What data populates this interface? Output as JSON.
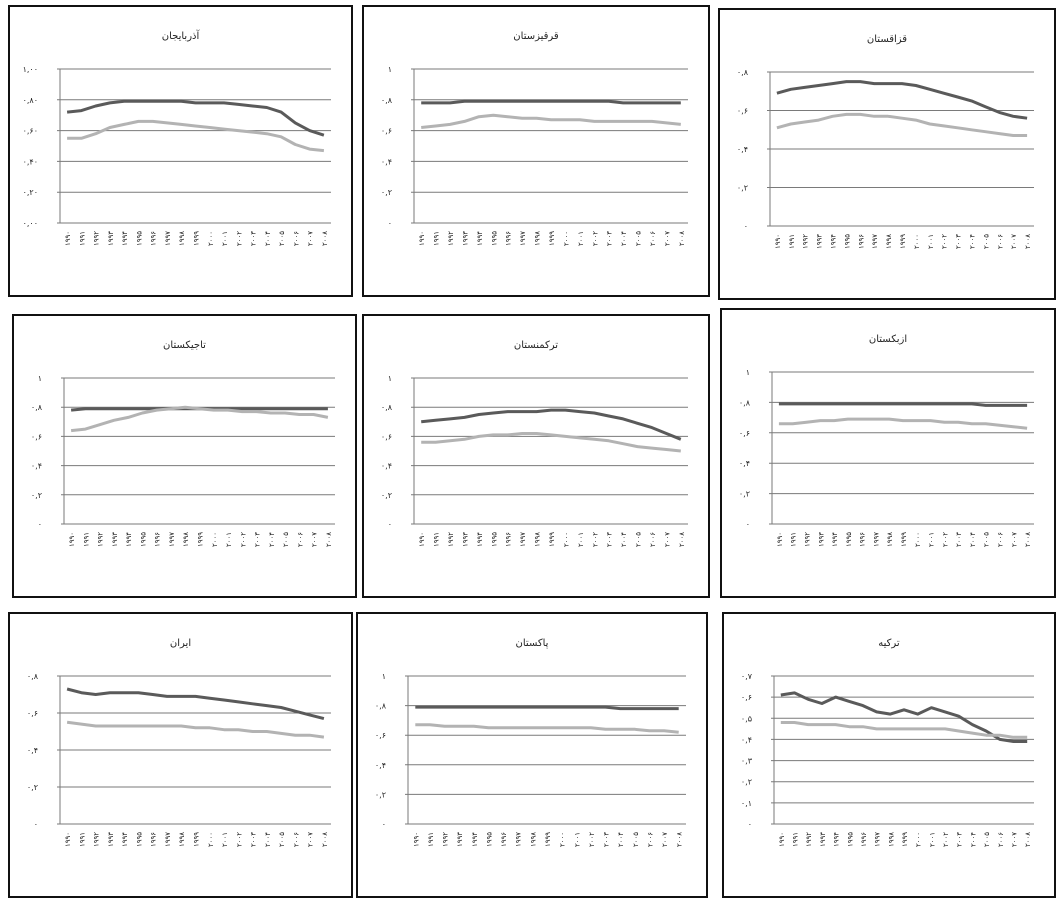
{
  "chart_data": [
    {
      "type": "line",
      "title": "آذربایجان",
      "ylim": [
        0,
        1
      ],
      "grid": true,
      "yticks": [
        {
          "value": 0,
          "label": "۰,۰۰"
        },
        {
          "value": 0.2,
          "label": "۰,۲۰"
        },
        {
          "value": 0.4,
          "label": "۰,۴۰"
        },
        {
          "value": 0.6,
          "label": "۰,۶۰"
        },
        {
          "value": 0.8,
          "label": "۰,۸۰"
        },
        {
          "value": 1,
          "label": "۱,۰۰"
        }
      ],
      "categories": [
        "۱۹۹۰",
        "۱۹۹۱",
        "۱۹۹۲",
        "۱۹۹۳",
        "۱۹۹۴",
        "۱۹۹۵",
        "۱۹۹۶",
        "۱۹۹۷",
        "۱۹۹۸",
        "۱۹۹۹",
        "۲۰۰۰",
        "۲۰۰۱",
        "۲۰۰۲",
        "۲۰۰۳",
        "۲۰۰۴",
        "۲۰۰۵",
        "۲۰۰۶",
        "۲۰۰۷",
        "۲۰۰۸"
      ],
      "series": [
        {
          "color": "#5a5a5a",
          "values": [
            0.72,
            0.73,
            0.76,
            0.78,
            0.79,
            0.79,
            0.79,
            0.79,
            0.79,
            0.78,
            0.78,
            0.78,
            0.77,
            0.76,
            0.75,
            0.72,
            0.65,
            0.6,
            0.57
          ]
        },
        {
          "color": "#b3b3b3",
          "values": [
            0.55,
            0.55,
            0.58,
            0.62,
            0.64,
            0.66,
            0.66,
            0.65,
            0.64,
            0.63,
            0.62,
            0.61,
            0.6,
            0.59,
            0.58,
            0.56,
            0.51,
            0.48,
            0.47
          ]
        }
      ]
    },
    {
      "type": "line",
      "title": "قرقیزستان",
      "ylim": [
        0,
        1
      ],
      "grid": true,
      "yticks": [
        {
          "value": 0,
          "label": "۰"
        },
        {
          "value": 0.2,
          "label": "۰,۲"
        },
        {
          "value": 0.4,
          "label": "۰,۴"
        },
        {
          "value": 0.6,
          "label": "۰,۶"
        },
        {
          "value": 0.8,
          "label": "۰,۸"
        },
        {
          "value": 1,
          "label": "۱"
        }
      ],
      "categories": [
        "۱۹۹۰",
        "۱۹۹۱",
        "۱۹۹۲",
        "۱۹۹۳",
        "۱۹۹۴",
        "۱۹۹۵",
        "۱۹۹۶",
        "۱۹۹۷",
        "۱۹۹۸",
        "۱۹۹۹",
        "۲۰۰۰",
        "۲۰۰۱",
        "۲۰۰۲",
        "۲۰۰۳",
        "۲۰۰۴",
        "۲۰۰۵",
        "۲۰۰۶",
        "۲۰۰۷",
        "۲۰۰۸"
      ],
      "series": [
        {
          "color": "#5a5a5a",
          "values": [
            0.78,
            0.78,
            0.78,
            0.79,
            0.79,
            0.79,
            0.79,
            0.79,
            0.79,
            0.79,
            0.79,
            0.79,
            0.79,
            0.79,
            0.78,
            0.78,
            0.78,
            0.78,
            0.78
          ]
        },
        {
          "color": "#b3b3b3",
          "values": [
            0.62,
            0.63,
            0.64,
            0.66,
            0.69,
            0.7,
            0.69,
            0.68,
            0.68,
            0.67,
            0.67,
            0.67,
            0.66,
            0.66,
            0.66,
            0.66,
            0.66,
            0.65,
            0.64
          ]
        }
      ]
    },
    {
      "type": "line",
      "title": "قزاقستان",
      "ylim": [
        0,
        0.8
      ],
      "grid": true,
      "yticks": [
        {
          "value": 0,
          "label": "۰"
        },
        {
          "value": 0.2,
          "label": "۰,۲"
        },
        {
          "value": 0.4,
          "label": "۰,۴"
        },
        {
          "value": 0.6,
          "label": "۰,۶"
        },
        {
          "value": 0.8,
          "label": "۰,۸"
        }
      ],
      "categories": [
        "۱۹۹۰",
        "۱۹۹۱",
        "۱۹۹۲",
        "۱۹۹۳",
        "۱۹۹۴",
        "۱۹۹۵",
        "۱۹۹۶",
        "۱۹۹۷",
        "۱۹۹۸",
        "۱۹۹۹",
        "۲۰۰۰",
        "۲۰۰۱",
        "۲۰۰۲",
        "۲۰۰۳",
        "۲۰۰۴",
        "۲۰۰۵",
        "۲۰۰۶",
        "۲۰۰۷",
        "۲۰۰۸"
      ],
      "series": [
        {
          "color": "#5a5a5a",
          "values": [
            0.69,
            0.71,
            0.72,
            0.73,
            0.74,
            0.75,
            0.75,
            0.74,
            0.74,
            0.74,
            0.73,
            0.71,
            0.69,
            0.67,
            0.65,
            0.62,
            0.59,
            0.57,
            0.56
          ]
        },
        {
          "color": "#b3b3b3",
          "values": [
            0.51,
            0.53,
            0.54,
            0.55,
            0.57,
            0.58,
            0.58,
            0.57,
            0.57,
            0.56,
            0.55,
            0.53,
            0.52,
            0.51,
            0.5,
            0.49,
            0.48,
            0.47,
            0.47
          ]
        }
      ]
    },
    {
      "type": "line",
      "title": "تاجیکستان",
      "ylim": [
        0,
        1
      ],
      "grid": true,
      "yticks": [
        {
          "value": 0,
          "label": "۰"
        },
        {
          "value": 0.2,
          "label": "۰,۲"
        },
        {
          "value": 0.4,
          "label": "۰,۴"
        },
        {
          "value": 0.6,
          "label": "۰,۶"
        },
        {
          "value": 0.8,
          "label": "۰,۸"
        },
        {
          "value": 1,
          "label": "۱"
        }
      ],
      "categories": [
        "۱۹۹۰",
        "۱۹۹۱",
        "۱۹۹۲",
        "۱۹۹۳",
        "۱۹۹۴",
        "۱۹۹۵",
        "۱۹۹۶",
        "۱۹۹۷",
        "۱۹۹۸",
        "۱۹۹۹",
        "۲۰۰۰",
        "۲۰۰۱",
        "۲۰۰۲",
        "۲۰۰۳",
        "۲۰۰۴",
        "۲۰۰۵",
        "۲۰۰۶",
        "۲۰۰۷",
        "۲۰۰۸"
      ],
      "series": [
        {
          "color": "#5a5a5a",
          "values": [
            0.78,
            0.79,
            0.79,
            0.79,
            0.79,
            0.79,
            0.79,
            0.79,
            0.79,
            0.79,
            0.79,
            0.79,
            0.79,
            0.79,
            0.79,
            0.79,
            0.79,
            0.79,
            0.79
          ]
        },
        {
          "color": "#b3b3b3",
          "values": [
            0.64,
            0.65,
            0.68,
            0.71,
            0.73,
            0.76,
            0.78,
            0.79,
            0.8,
            0.79,
            0.78,
            0.78,
            0.77,
            0.77,
            0.76,
            0.76,
            0.75,
            0.75,
            0.73
          ]
        }
      ]
    },
    {
      "type": "line",
      "title": "ترکمنستان",
      "ylim": [
        0,
        1
      ],
      "grid": true,
      "yticks": [
        {
          "value": 0,
          "label": "۰"
        },
        {
          "value": 0.2,
          "label": "۰,۲"
        },
        {
          "value": 0.4,
          "label": "۰,۴"
        },
        {
          "value": 0.6,
          "label": "۰,۶"
        },
        {
          "value": 0.8,
          "label": "۰,۸"
        },
        {
          "value": 1,
          "label": "۱"
        }
      ],
      "categories": [
        "۱۹۹۰",
        "۱۹۹۱",
        "۱۹۹۲",
        "۱۹۹۳",
        "۱۹۹۴",
        "۱۹۹۵",
        "۱۹۹۶",
        "۱۹۹۷",
        "۱۹۹۸",
        "۱۹۹۹",
        "۲۰۰۰",
        "۲۰۰۱",
        "۲۰۰۲",
        "۲۰۰۳",
        "۲۰۰۴",
        "۲۰۰۵",
        "۲۰۰۶",
        "۲۰۰۷",
        "۲۰۰۸"
      ],
      "series": [
        {
          "color": "#5a5a5a",
          "values": [
            0.7,
            0.71,
            0.72,
            0.73,
            0.75,
            0.76,
            0.77,
            0.77,
            0.77,
            0.78,
            0.78,
            0.77,
            0.76,
            0.74,
            0.72,
            0.69,
            0.66,
            0.62,
            0.58
          ]
        },
        {
          "color": "#b3b3b3",
          "values": [
            0.56,
            0.56,
            0.57,
            0.58,
            0.6,
            0.61,
            0.61,
            0.62,
            0.62,
            0.61,
            0.6,
            0.59,
            0.58,
            0.57,
            0.55,
            0.53,
            0.52,
            0.51,
            0.5
          ]
        }
      ]
    },
    {
      "type": "line",
      "title": "ازبکستان",
      "ylim": [
        0,
        1
      ],
      "grid": true,
      "yticks": [
        {
          "value": 0,
          "label": "۰"
        },
        {
          "value": 0.2,
          "label": "۰,۲"
        },
        {
          "value": 0.4,
          "label": "۰,۴"
        },
        {
          "value": 0.6,
          "label": "۰,۶"
        },
        {
          "value": 0.8,
          "label": "۰,۸"
        },
        {
          "value": 1,
          "label": "۱"
        }
      ],
      "categories": [
        "۱۹۹۰",
        "۱۹۹۱",
        "۱۹۹۲",
        "۱۹۹۳",
        "۱۹۹۴",
        "۱۹۹۵",
        "۱۹۹۶",
        "۱۹۹۷",
        "۱۹۹۸",
        "۱۹۹۹",
        "۲۰۰۰",
        "۲۰۰۱",
        "۲۰۰۲",
        "۲۰۰۳",
        "۲۰۰۴",
        "۲۰۰۵",
        "۲۰۰۶",
        "۲۰۰۷",
        "۲۰۰۸"
      ],
      "series": [
        {
          "color": "#5a5a5a",
          "values": [
            0.79,
            0.79,
            0.79,
            0.79,
            0.79,
            0.79,
            0.79,
            0.79,
            0.79,
            0.79,
            0.79,
            0.79,
            0.79,
            0.79,
            0.79,
            0.78,
            0.78,
            0.78,
            0.78
          ]
        },
        {
          "color": "#b3b3b3",
          "values": [
            0.66,
            0.66,
            0.67,
            0.68,
            0.68,
            0.69,
            0.69,
            0.69,
            0.69,
            0.68,
            0.68,
            0.68,
            0.67,
            0.67,
            0.66,
            0.66,
            0.65,
            0.64,
            0.63
          ]
        }
      ]
    },
    {
      "type": "line",
      "title": "ایران",
      "ylim": [
        0,
        0.8
      ],
      "grid": true,
      "yticks": [
        {
          "value": 0,
          "label": "۰"
        },
        {
          "value": 0.2,
          "label": "۰,۲"
        },
        {
          "value": 0.4,
          "label": "۰,۴"
        },
        {
          "value": 0.6,
          "label": "۰,۶"
        },
        {
          "value": 0.8,
          "label": "۰,۸"
        }
      ],
      "categories": [
        "۱۹۹۰",
        "۱۹۹۱",
        "۱۹۹۲",
        "۱۹۹۳",
        "۱۹۹۴",
        "۱۹۹۵",
        "۱۹۹۶",
        "۱۹۹۷",
        "۱۹۹۸",
        "۱۹۹۹",
        "۲۰۰۰",
        "۲۰۰۱",
        "۲۰۰۲",
        "۲۰۰۳",
        "۲۰۰۴",
        "۲۰۰۵",
        "۲۰۰۶",
        "۲۰۰۷",
        "۲۰۰۸"
      ],
      "series": [
        {
          "color": "#5a5a5a",
          "values": [
            0.73,
            0.71,
            0.7,
            0.71,
            0.71,
            0.71,
            0.7,
            0.69,
            0.69,
            0.69,
            0.68,
            0.67,
            0.66,
            0.65,
            0.64,
            0.63,
            0.61,
            0.59,
            0.57
          ]
        },
        {
          "color": "#b3b3b3",
          "values": [
            0.55,
            0.54,
            0.53,
            0.53,
            0.53,
            0.53,
            0.53,
            0.53,
            0.53,
            0.52,
            0.52,
            0.51,
            0.51,
            0.5,
            0.5,
            0.49,
            0.48,
            0.48,
            0.47
          ]
        }
      ]
    },
    {
      "type": "line",
      "title": "پاکستان",
      "ylim": [
        0,
        1
      ],
      "grid": true,
      "yticks": [
        {
          "value": 0,
          "label": "۰"
        },
        {
          "value": 0.2,
          "label": "۰,۲"
        },
        {
          "value": 0.4,
          "label": "۰,۴"
        },
        {
          "value": 0.6,
          "label": "۰,۶"
        },
        {
          "value": 0.8,
          "label": "۰,۸"
        },
        {
          "value": 1,
          "label": "۱"
        }
      ],
      "categories": [
        "۱۹۹۰",
        "۱۹۹۱",
        "۱۹۹۲",
        "۱۹۹۳",
        "۱۹۹۴",
        "۱۹۹۵",
        "۱۹۹۶",
        "۱۹۹۷",
        "۱۹۹۸",
        "۱۹۹۹",
        "۲۰۰۰",
        "۲۰۰۱",
        "۲۰۰۲",
        "۲۰۰۳",
        "۲۰۰۴",
        "۲۰۰۵",
        "۲۰۰۶",
        "۲۰۰۷",
        "۲۰۰۸"
      ],
      "series": [
        {
          "color": "#5a5a5a",
          "values": [
            0.79,
            0.79,
            0.79,
            0.79,
            0.79,
            0.79,
            0.79,
            0.79,
            0.79,
            0.79,
            0.79,
            0.79,
            0.79,
            0.79,
            0.78,
            0.78,
            0.78,
            0.78,
            0.78
          ]
        },
        {
          "color": "#b3b3b3",
          "values": [
            0.67,
            0.67,
            0.66,
            0.66,
            0.66,
            0.65,
            0.65,
            0.65,
            0.65,
            0.65,
            0.65,
            0.65,
            0.65,
            0.64,
            0.64,
            0.64,
            0.63,
            0.63,
            0.62
          ]
        }
      ]
    },
    {
      "type": "line",
      "title": "ترکیه",
      "ylim": [
        0,
        0.7
      ],
      "grid": true,
      "yticks": [
        {
          "value": 0,
          "label": "۰"
        },
        {
          "value": 0.1,
          "label": "۰,۱"
        },
        {
          "value": 0.2,
          "label": "۰,۲"
        },
        {
          "value": 0.3,
          "label": "۰,۳"
        },
        {
          "value": 0.4,
          "label": "۰,۴"
        },
        {
          "value": 0.5,
          "label": "۰,۵"
        },
        {
          "value": 0.6,
          "label": "۰,۶"
        },
        {
          "value": 0.7,
          "label": "۰,۷"
        }
      ],
      "categories": [
        "۱۹۹۰",
        "۱۹۹۱",
        "۱۹۹۲",
        "۱۹۹۳",
        "۱۹۹۴",
        "۱۹۹۵",
        "۱۹۹۶",
        "۱۹۹۷",
        "۱۹۹۸",
        "۱۹۹۹",
        "۲۰۰۰",
        "۲۰۰۱",
        "۲۰۰۲",
        "۲۰۰۳",
        "۲۰۰۴",
        "۲۰۰۵",
        "۲۰۰۶",
        "۲۰۰۷",
        "۲۰۰۸"
      ],
      "series": [
        {
          "color": "#5a5a5a",
          "values": [
            0.61,
            0.62,
            0.59,
            0.57,
            0.6,
            0.58,
            0.56,
            0.53,
            0.52,
            0.54,
            0.52,
            0.55,
            0.53,
            0.51,
            0.47,
            0.44,
            0.4,
            0.39,
            0.39
          ]
        },
        {
          "color": "#b3b3b3",
          "values": [
            0.48,
            0.48,
            0.47,
            0.47,
            0.47,
            0.46,
            0.46,
            0.45,
            0.45,
            0.45,
            0.45,
            0.45,
            0.45,
            0.44,
            0.43,
            0.42,
            0.42,
            0.41,
            0.41
          ]
        }
      ]
    }
  ]
}
